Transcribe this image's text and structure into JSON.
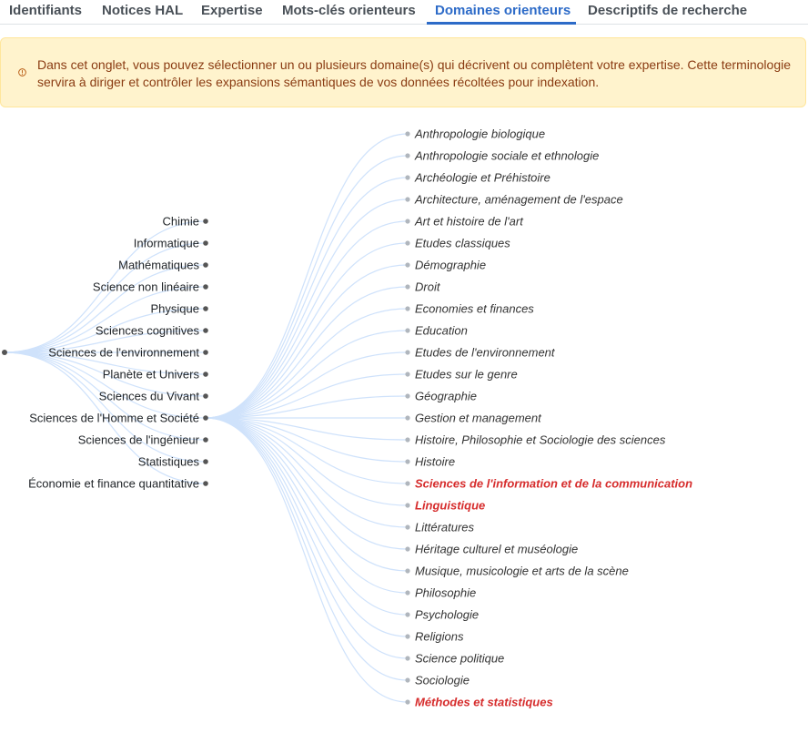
{
  "tabs": [
    {
      "label": "Identifiants",
      "active": false
    },
    {
      "label": "Notices HAL",
      "active": false
    },
    {
      "label": "Expertise",
      "active": false
    },
    {
      "label": "Mots-clés orienteurs",
      "active": false
    },
    {
      "label": "Domaines orienteurs",
      "active": true
    },
    {
      "label": "Descriptifs de recherche",
      "active": false
    }
  ],
  "alert": {
    "icon": "info-circle-icon",
    "text": "Dans cet onglet, vous pouvez sélectionner un ou plusieurs domaine(s) qui décrivent ou complètent votre expertise. Cette terminologie servira à diriger et contrôler les expansions sémantiques de vos données récoltées pour indexation."
  },
  "colors": {
    "accent": "#2d6bc8",
    "selected": "#d62c2c",
    "link": "#cfe2fb",
    "node": "#555555",
    "leaf_node": "#b0b6bd"
  },
  "tree": {
    "domains": [
      "Chimie",
      "Informatique",
      "Mathématiques",
      "Science non linéaire",
      "Physique",
      "Sciences cognitives",
      "Sciences de l'environnement",
      "Planète et Univers",
      "Sciences du Vivant",
      "Sciences de l'Homme et Société",
      "Sciences de l'ingénieur",
      "Statistiques",
      "Économie et finance quantitative"
    ],
    "expanded_domain": "Sciences de l'Homme et Société",
    "subdomains": [
      {
        "label": "Anthropologie biologique",
        "selected": false
      },
      {
        "label": "Anthropologie sociale et ethnologie",
        "selected": false
      },
      {
        "label": "Archéologie et Préhistoire",
        "selected": false
      },
      {
        "label": "Architecture, aménagement de l'espace",
        "selected": false
      },
      {
        "label": "Art et histoire de l'art",
        "selected": false
      },
      {
        "label": "Etudes classiques",
        "selected": false
      },
      {
        "label": "Démographie",
        "selected": false
      },
      {
        "label": "Droit",
        "selected": false
      },
      {
        "label": "Economies et finances",
        "selected": false
      },
      {
        "label": "Education",
        "selected": false
      },
      {
        "label": "Etudes de l'environnement",
        "selected": false
      },
      {
        "label": "Etudes sur le genre",
        "selected": false
      },
      {
        "label": "Géographie",
        "selected": false
      },
      {
        "label": "Gestion et management",
        "selected": false
      },
      {
        "label": "Histoire, Philosophie et Sociologie des sciences",
        "selected": false
      },
      {
        "label": "Histoire",
        "selected": false
      },
      {
        "label": "Sciences de l'information et de la communication",
        "selected": true
      },
      {
        "label": "Linguistique",
        "selected": true
      },
      {
        "label": "Littératures",
        "selected": false
      },
      {
        "label": "Héritage culturel et muséologie",
        "selected": false
      },
      {
        "label": "Musique, musicologie et arts de la scène",
        "selected": false
      },
      {
        "label": "Philosophie",
        "selected": false
      },
      {
        "label": "Psychologie",
        "selected": false
      },
      {
        "label": "Religions",
        "selected": false
      },
      {
        "label": "Science politique",
        "selected": false
      },
      {
        "label": "Sociologie",
        "selected": false
      },
      {
        "label": "Méthodes et statistiques",
        "selected": true
      }
    ]
  }
}
